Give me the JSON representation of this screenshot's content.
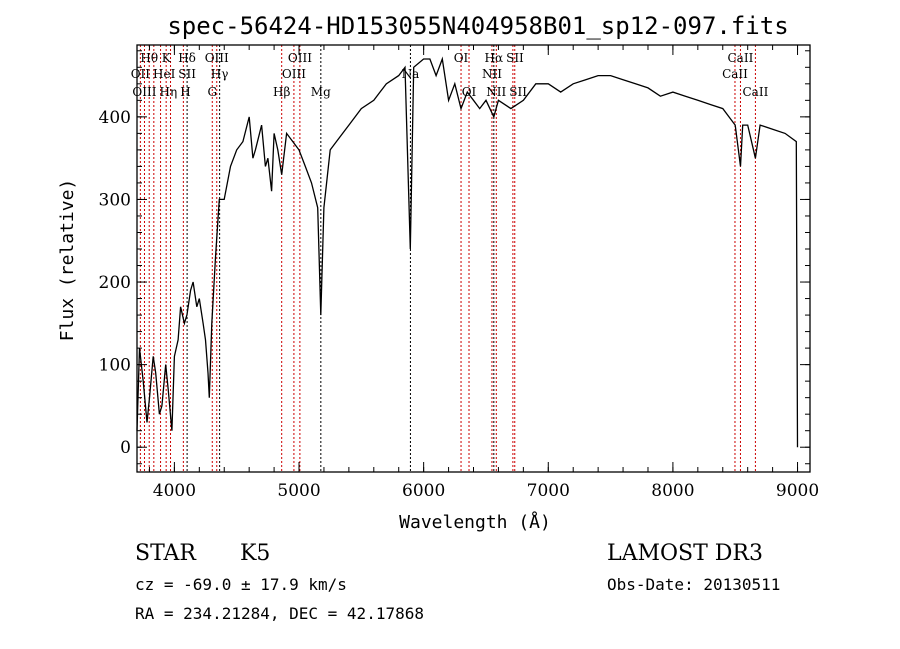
{
  "chart_data": {
    "type": "line",
    "title": "spec-56424-HD153055N404958B01_sp12-097.fits",
    "xlabel": "Wavelength (Å)",
    "ylabel": "Flux (relative)",
    "xlim": [
      3700,
      9100
    ],
    "ylim": [
      -30,
      487
    ],
    "xticks": [
      4000,
      5000,
      6000,
      7000,
      8000,
      9000
    ],
    "yticks": [
      0,
      100,
      200,
      300,
      400
    ],
    "series": [
      {
        "name": "spectrum",
        "x": [
          3700,
          3720,
          3750,
          3780,
          3800,
          3830,
          3850,
          3880,
          3900,
          3930,
          3950,
          3980,
          4000,
          4030,
          4050,
          4080,
          4100,
          4130,
          4150,
          4180,
          4200,
          4230,
          4250,
          4270,
          4280,
          4300,
          4330,
          4360,
          4400,
          4450,
          4500,
          4550,
          4600,
          4630,
          4650,
          4700,
          4730,
          4750,
          4780,
          4800,
          4830,
          4861,
          4900,
          4950,
          5000,
          5050,
          5100,
          5150,
          5175,
          5200,
          5250,
          5300,
          5400,
          5500,
          5600,
          5700,
          5800,
          5850,
          5893,
          5920,
          6000,
          6050,
          6100,
          6150,
          6200,
          6250,
          6300,
          6350,
          6400,
          6450,
          6500,
          6563,
          6600,
          6700,
          6800,
          6900,
          7000,
          7100,
          7200,
          7300,
          7400,
          7500,
          7600,
          7700,
          7800,
          7900,
          8000,
          8100,
          8200,
          8300,
          8400,
          8450,
          8500,
          8542,
          8560,
          8600,
          8662,
          8700,
          8800,
          8900,
          8990,
          9000
        ],
        "y": [
          20,
          120,
          80,
          30,
          60,
          110,
          90,
          40,
          50,
          100,
          70,
          20,
          110,
          130,
          170,
          150,
          160,
          190,
          200,
          170,
          180,
          150,
          130,
          90,
          60,
          150,
          230,
          300,
          300,
          340,
          360,
          370,
          400,
          350,
          360,
          390,
          340,
          350,
          310,
          380,
          360,
          330,
          380,
          370,
          360,
          340,
          320,
          290,
          160,
          290,
          360,
          370,
          390,
          410,
          420,
          440,
          450,
          460,
          240,
          460,
          470,
          470,
          450,
          470,
          420,
          440,
          410,
          430,
          420,
          410,
          420,
          400,
          420,
          410,
          420,
          440,
          440,
          430,
          440,
          445,
          450,
          450,
          445,
          440,
          435,
          425,
          430,
          425,
          420,
          415,
          410,
          400,
          390,
          340,
          390,
          390,
          350,
          390,
          385,
          380,
          370,
          0
        ]
      }
    ],
    "lines": [
      {
        "label": "OII",
        "w": 3727,
        "row": 2,
        "color": "#cc0000"
      },
      {
        "label": "Hθ",
        "w": 3798,
        "row": 1,
        "color": "#cc0000"
      },
      {
        "label": "OIII",
        "w": 3760,
        "row": 3,
        "color": "#cc0000"
      },
      {
        "label": "Hη",
        "w": 3835,
        "row": 3,
        "color": "#cc0000"
      },
      {
        "label": "HeI",
        "w": 3889,
        "row": 2,
        "color": "#cc0000"
      },
      {
        "label": "K",
        "w": 3934,
        "row": 1,
        "color": "#cc0000"
      },
      {
        "label": "H",
        "w": 3969,
        "row": 3,
        "color": "#cc0000"
      },
      {
        "label": "SII",
        "w": 4072,
        "row": 2,
        "color": "#cc0000"
      },
      {
        "label": "Hδ",
        "w": 4102,
        "row": 1,
        "color": "#000000"
      },
      {
        "label": "G",
        "w": 4304,
        "row": 3,
        "color": "#cc0000"
      },
      {
        "label": "OIII",
        "w": 4340,
        "row": 1,
        "color": "#cc0000"
      },
      {
        "label": "Hγ",
        "w": 4363,
        "row": 2,
        "color": "#000000"
      },
      {
        "label": "Hβ",
        "w": 4861,
        "row": 3,
        "color": "#cc0000"
      },
      {
        "label": "OIII",
        "w": 4959,
        "row": 2,
        "color": "#cc0000"
      },
      {
        "label": "OIII",
        "w": 5007,
        "row": 1,
        "color": "#cc0000"
      },
      {
        "label": "Mg",
        "w": 5175,
        "row": 3,
        "color": "#000000"
      },
      {
        "label": "Na",
        "w": 5894,
        "row": 2,
        "color": "#000000"
      },
      {
        "label": "OI",
        "w": 6300,
        "row": 1,
        "color": "#cc0000"
      },
      {
        "label": "OI",
        "w": 6364,
        "row": 3,
        "color": "#cc0000"
      },
      {
        "label": "NII",
        "w": 6548,
        "row": 2,
        "color": "#cc0000"
      },
      {
        "label": "Hα",
        "w": 6563,
        "row": 1,
        "color": "#000000"
      },
      {
        "label": "NII",
        "w": 6583,
        "row": 3,
        "color": "#cc0000"
      },
      {
        "label": "SII",
        "w": 6716,
        "row": 1,
        "color": "#cc0000"
      },
      {
        "label": "SII",
        "w": 6731,
        "row": 3,
        "color": "#cc0000"
      },
      {
        "label": "CaII",
        "w": 8498,
        "row": 2,
        "color": "#cc0000"
      },
      {
        "label": "CaII",
        "w": 8542,
        "row": 1,
        "color": "#cc0000"
      },
      {
        "label": "CaII",
        "w": 8662,
        "row": 3,
        "color": "#cc0000"
      }
    ]
  },
  "info": {
    "class": "STAR",
    "subclass": "K5",
    "survey": "LAMOST DR3",
    "cz": "cz = -69.0 ± 17.9 km/s",
    "obs_date": "Obs-Date: 20130511",
    "radec": "RA = 234.21284, DEC =  42.17868"
  }
}
